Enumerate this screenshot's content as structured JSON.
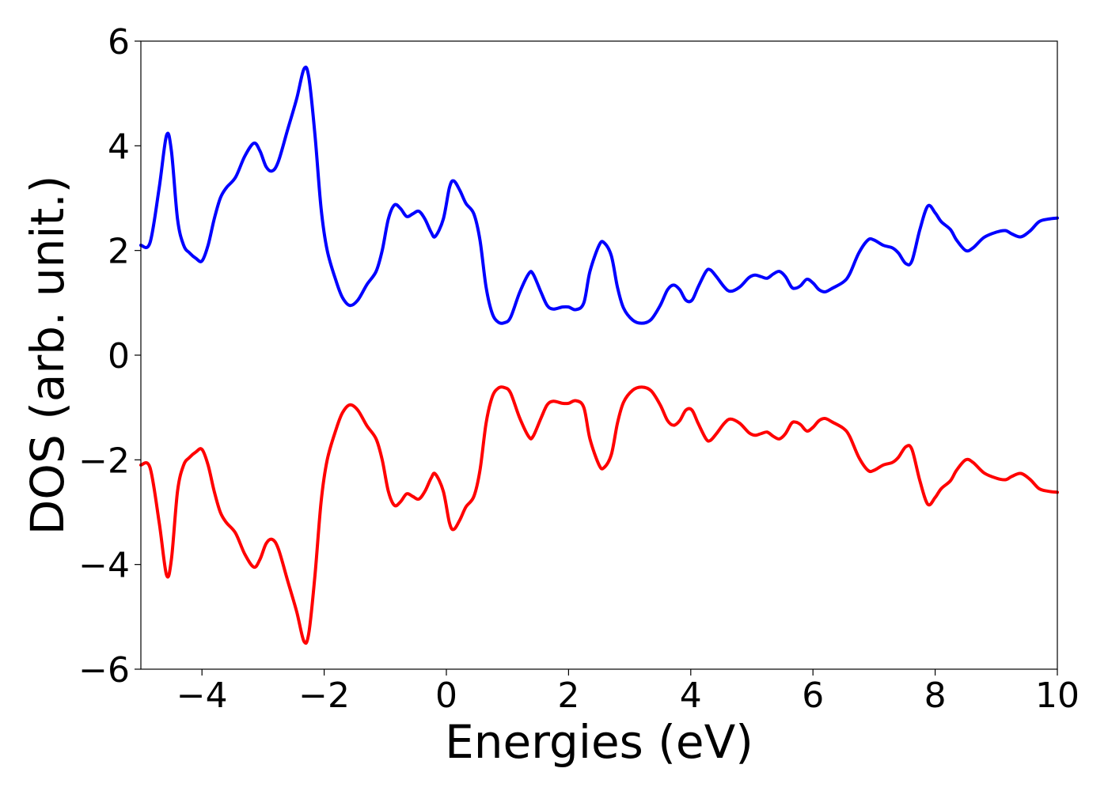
{
  "chart_data": {
    "type": "line",
    "title": "",
    "xlabel": "Energies (eV)",
    "ylabel": "DOS (arb. unit.)",
    "xlim": [
      -5,
      10
    ],
    "ylim": [
      -6,
      6
    ],
    "x_ticks": [
      -4,
      -2,
      0,
      2,
      4,
      6,
      8,
      10
    ],
    "x_tick_labels": [
      "−4",
      "−2",
      "0",
      "2",
      "4",
      "6",
      "8",
      "10"
    ],
    "y_ticks": [
      -6,
      -4,
      -2,
      0,
      2,
      4,
      6
    ],
    "y_tick_labels": [
      "−6",
      "−4",
      "−2",
      "0",
      "2",
      "4",
      "6"
    ],
    "grid": false,
    "series": [
      {
        "color": "#0000ff",
        "points": [
          [
            -5.0,
            2.1
          ],
          [
            -4.85,
            2.15
          ],
          [
            -4.7,
            3.2
          ],
          [
            -4.58,
            4.2
          ],
          [
            -4.5,
            3.9
          ],
          [
            -4.4,
            2.6
          ],
          [
            -4.3,
            2.1
          ],
          [
            -4.2,
            1.95
          ],
          [
            -4.1,
            1.85
          ],
          [
            -4.0,
            1.8
          ],
          [
            -3.9,
            2.1
          ],
          [
            -3.8,
            2.6
          ],
          [
            -3.7,
            3.0
          ],
          [
            -3.6,
            3.2
          ],
          [
            -3.45,
            3.4
          ],
          [
            -3.3,
            3.8
          ],
          [
            -3.15,
            4.05
          ],
          [
            -3.05,
            3.9
          ],
          [
            -2.95,
            3.6
          ],
          [
            -2.85,
            3.52
          ],
          [
            -2.75,
            3.7
          ],
          [
            -2.6,
            4.3
          ],
          [
            -2.45,
            4.9
          ],
          [
            -2.33,
            5.47
          ],
          [
            -2.25,
            5.3
          ],
          [
            -2.15,
            4.2
          ],
          [
            -2.05,
            2.8
          ],
          [
            -1.95,
            2.0
          ],
          [
            -1.8,
            1.4
          ],
          [
            -1.7,
            1.1
          ],
          [
            -1.58,
            0.95
          ],
          [
            -1.45,
            1.05
          ],
          [
            -1.3,
            1.35
          ],
          [
            -1.15,
            1.6
          ],
          [
            -1.05,
            2.0
          ],
          [
            -0.95,
            2.6
          ],
          [
            -0.85,
            2.87
          ],
          [
            -0.75,
            2.8
          ],
          [
            -0.65,
            2.65
          ],
          [
            -0.55,
            2.7
          ],
          [
            -0.45,
            2.75
          ],
          [
            -0.35,
            2.6
          ],
          [
            -0.25,
            2.35
          ],
          [
            -0.18,
            2.27
          ],
          [
            -0.05,
            2.6
          ],
          [
            0.05,
            3.2
          ],
          [
            0.12,
            3.33
          ],
          [
            0.22,
            3.15
          ],
          [
            0.32,
            2.9
          ],
          [
            0.45,
            2.7
          ],
          [
            0.55,
            2.2
          ],
          [
            0.65,
            1.3
          ],
          [
            0.75,
            0.8
          ],
          [
            0.85,
            0.63
          ],
          [
            0.95,
            0.62
          ],
          [
            1.05,
            0.72
          ],
          [
            1.2,
            1.2
          ],
          [
            1.35,
            1.56
          ],
          [
            1.42,
            1.55
          ],
          [
            1.55,
            1.2
          ],
          [
            1.65,
            0.95
          ],
          [
            1.75,
            0.88
          ],
          [
            1.9,
            0.92
          ],
          [
            2.0,
            0.92
          ],
          [
            2.12,
            0.87
          ],
          [
            2.25,
            1.0
          ],
          [
            2.35,
            1.6
          ],
          [
            2.5,
            2.1
          ],
          [
            2.58,
            2.15
          ],
          [
            2.7,
            1.9
          ],
          [
            2.8,
            1.3
          ],
          [
            2.9,
            0.9
          ],
          [
            3.05,
            0.67
          ],
          [
            3.2,
            0.61
          ],
          [
            3.35,
            0.68
          ],
          [
            3.5,
            0.95
          ],
          [
            3.62,
            1.25
          ],
          [
            3.72,
            1.34
          ],
          [
            3.82,
            1.25
          ],
          [
            3.92,
            1.05
          ],
          [
            4.02,
            1.05
          ],
          [
            4.12,
            1.3
          ],
          [
            4.25,
            1.6
          ],
          [
            4.32,
            1.63
          ],
          [
            4.42,
            1.5
          ],
          [
            4.55,
            1.3
          ],
          [
            4.65,
            1.22
          ],
          [
            4.8,
            1.3
          ],
          [
            4.95,
            1.48
          ],
          [
            5.05,
            1.53
          ],
          [
            5.15,
            1.5
          ],
          [
            5.25,
            1.47
          ],
          [
            5.35,
            1.55
          ],
          [
            5.45,
            1.6
          ],
          [
            5.55,
            1.5
          ],
          [
            5.65,
            1.3
          ],
          [
            5.72,
            1.28
          ],
          [
            5.8,
            1.33
          ],
          [
            5.9,
            1.45
          ],
          [
            6.0,
            1.38
          ],
          [
            6.1,
            1.25
          ],
          [
            6.2,
            1.21
          ],
          [
            6.32,
            1.28
          ],
          [
            6.5,
            1.4
          ],
          [
            6.6,
            1.55
          ],
          [
            6.75,
            1.95
          ],
          [
            6.9,
            2.2
          ],
          [
            7.0,
            2.2
          ],
          [
            7.15,
            2.1
          ],
          [
            7.3,
            2.05
          ],
          [
            7.4,
            1.95
          ],
          [
            7.52,
            1.75
          ],
          [
            7.62,
            1.8
          ],
          [
            7.75,
            2.4
          ],
          [
            7.88,
            2.85
          ],
          [
            8.0,
            2.72
          ],
          [
            8.1,
            2.55
          ],
          [
            8.25,
            2.4
          ],
          [
            8.35,
            2.2
          ],
          [
            8.5,
            2.0
          ],
          [
            8.62,
            2.05
          ],
          [
            8.8,
            2.25
          ],
          [
            9.0,
            2.35
          ],
          [
            9.15,
            2.38
          ],
          [
            9.25,
            2.32
          ],
          [
            9.4,
            2.26
          ],
          [
            9.55,
            2.37
          ],
          [
            9.7,
            2.55
          ],
          [
            9.85,
            2.6
          ],
          [
            10.0,
            2.62
          ]
        ]
      },
      {
        "color": "#ff0000",
        "points": [
          [
            -5.0,
            -2.1
          ],
          [
            -4.85,
            -2.15
          ],
          [
            -4.7,
            -3.2
          ],
          [
            -4.58,
            -4.2
          ],
          [
            -4.5,
            -3.9
          ],
          [
            -4.4,
            -2.6
          ],
          [
            -4.3,
            -2.1
          ],
          [
            -4.2,
            -1.95
          ],
          [
            -4.1,
            -1.85
          ],
          [
            -4.0,
            -1.8
          ],
          [
            -3.9,
            -2.1
          ],
          [
            -3.8,
            -2.6
          ],
          [
            -3.7,
            -3.0
          ],
          [
            -3.6,
            -3.2
          ],
          [
            -3.45,
            -3.4
          ],
          [
            -3.3,
            -3.8
          ],
          [
            -3.15,
            -4.05
          ],
          [
            -3.05,
            -3.9
          ],
          [
            -2.95,
            -3.6
          ],
          [
            -2.85,
            -3.52
          ],
          [
            -2.75,
            -3.7
          ],
          [
            -2.6,
            -4.3
          ],
          [
            -2.45,
            -4.9
          ],
          [
            -2.33,
            -5.47
          ],
          [
            -2.25,
            -5.3
          ],
          [
            -2.15,
            -4.2
          ],
          [
            -2.05,
            -2.8
          ],
          [
            -1.95,
            -2.0
          ],
          [
            -1.8,
            -1.4
          ],
          [
            -1.7,
            -1.1
          ],
          [
            -1.58,
            -0.95
          ],
          [
            -1.45,
            -1.05
          ],
          [
            -1.3,
            -1.35
          ],
          [
            -1.15,
            -1.6
          ],
          [
            -1.05,
            -2.0
          ],
          [
            -0.95,
            -2.6
          ],
          [
            -0.85,
            -2.87
          ],
          [
            -0.75,
            -2.8
          ],
          [
            -0.65,
            -2.65
          ],
          [
            -0.55,
            -2.7
          ],
          [
            -0.45,
            -2.75
          ],
          [
            -0.35,
            -2.6
          ],
          [
            -0.25,
            -2.35
          ],
          [
            -0.18,
            -2.27
          ],
          [
            -0.05,
            -2.6
          ],
          [
            0.05,
            -3.2
          ],
          [
            0.12,
            -3.33
          ],
          [
            0.22,
            -3.15
          ],
          [
            0.32,
            -2.9
          ],
          [
            0.45,
            -2.7
          ],
          [
            0.55,
            -2.2
          ],
          [
            0.65,
            -1.3
          ],
          [
            0.75,
            -0.8
          ],
          [
            0.85,
            -0.63
          ],
          [
            0.95,
            -0.62
          ],
          [
            1.05,
            -0.72
          ],
          [
            1.2,
            -1.2
          ],
          [
            1.35,
            -1.56
          ],
          [
            1.42,
            -1.55
          ],
          [
            1.55,
            -1.2
          ],
          [
            1.65,
            -0.95
          ],
          [
            1.75,
            -0.88
          ],
          [
            1.9,
            -0.92
          ],
          [
            2.0,
            -0.92
          ],
          [
            2.12,
            -0.87
          ],
          [
            2.25,
            -1.0
          ],
          [
            2.35,
            -1.6
          ],
          [
            2.5,
            -2.1
          ],
          [
            2.58,
            -2.15
          ],
          [
            2.7,
            -1.9
          ],
          [
            2.8,
            -1.3
          ],
          [
            2.9,
            -0.9
          ],
          [
            3.05,
            -0.67
          ],
          [
            3.2,
            -0.61
          ],
          [
            3.35,
            -0.68
          ],
          [
            3.5,
            -0.95
          ],
          [
            3.62,
            -1.25
          ],
          [
            3.72,
            -1.34
          ],
          [
            3.82,
            -1.25
          ],
          [
            3.92,
            -1.05
          ],
          [
            4.02,
            -1.05
          ],
          [
            4.12,
            -1.3
          ],
          [
            4.25,
            -1.6
          ],
          [
            4.32,
            -1.63
          ],
          [
            4.42,
            -1.5
          ],
          [
            4.55,
            -1.3
          ],
          [
            4.65,
            -1.22
          ],
          [
            4.8,
            -1.3
          ],
          [
            4.95,
            -1.48
          ],
          [
            5.05,
            -1.53
          ],
          [
            5.15,
            -1.5
          ],
          [
            5.25,
            -1.47
          ],
          [
            5.35,
            -1.55
          ],
          [
            5.45,
            -1.6
          ],
          [
            5.55,
            -1.5
          ],
          [
            5.65,
            -1.3
          ],
          [
            5.72,
            -1.28
          ],
          [
            5.8,
            -1.33
          ],
          [
            5.9,
            -1.45
          ],
          [
            6.0,
            -1.38
          ],
          [
            6.1,
            -1.25
          ],
          [
            6.2,
            -1.21
          ],
          [
            6.32,
            -1.28
          ],
          [
            6.5,
            -1.4
          ],
          [
            6.6,
            -1.55
          ],
          [
            6.75,
            -1.95
          ],
          [
            6.9,
            -2.2
          ],
          [
            7.0,
            -2.2
          ],
          [
            7.15,
            -2.1
          ],
          [
            7.3,
            -2.05
          ],
          [
            7.4,
            -1.95
          ],
          [
            7.52,
            -1.75
          ],
          [
            7.62,
            -1.8
          ],
          [
            7.75,
            -2.4
          ],
          [
            7.88,
            -2.85
          ],
          [
            8.0,
            -2.72
          ],
          [
            8.1,
            -2.55
          ],
          [
            8.25,
            -2.4
          ],
          [
            8.35,
            -2.2
          ],
          [
            8.5,
            -2.0
          ],
          [
            8.62,
            -2.05
          ],
          [
            8.8,
            -2.25
          ],
          [
            9.0,
            -2.35
          ],
          [
            9.15,
            -2.38
          ],
          [
            9.25,
            -2.32
          ],
          [
            9.4,
            -2.26
          ],
          [
            9.55,
            -2.37
          ],
          [
            9.7,
            -2.55
          ],
          [
            9.85,
            -2.6
          ],
          [
            10.0,
            -2.62
          ]
        ]
      }
    ]
  }
}
